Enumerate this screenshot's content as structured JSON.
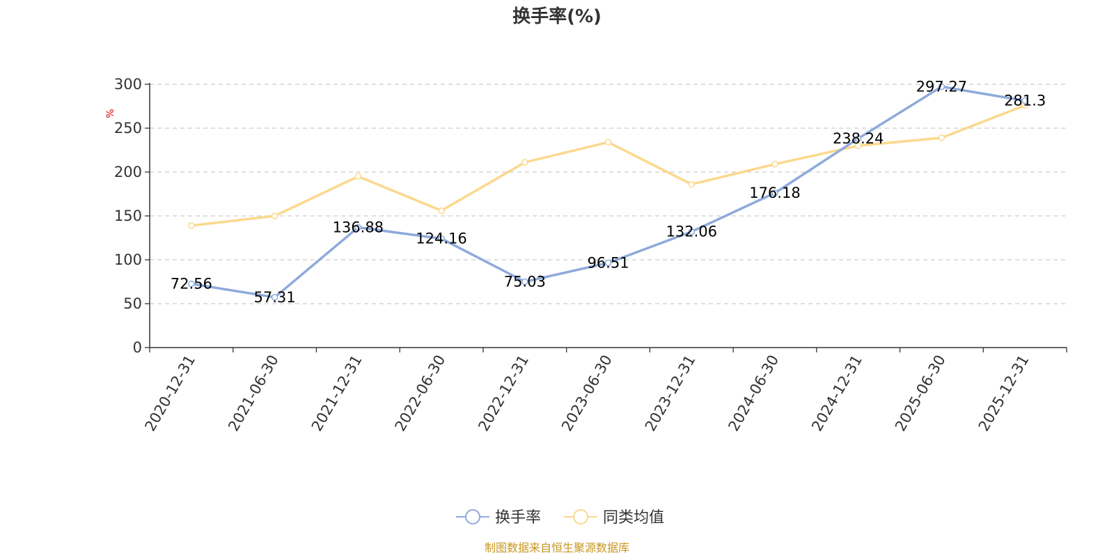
{
  "colors": {
    "series_turnover": "#8eaadb",
    "series_peer": "#fcd88d",
    "axis": "#333333",
    "grid": "#cccccc",
    "unit": "#e00000",
    "source": "#c8961e"
  },
  "chart_data": {
    "type": "line",
    "title": "换手率(%)",
    "ylabel": "%",
    "xlabel": "",
    "ylim": [
      0,
      300
    ],
    "yticks": [
      0,
      50,
      100,
      150,
      200,
      250,
      300
    ],
    "grid": "horizontal-dashed",
    "legend_position": "bottom-center",
    "x": [
      "2020-12-31",
      "2021-06-30",
      "2021-12-31",
      "2022-06-30",
      "2022-12-31",
      "2023-06-30",
      "2023-12-31",
      "2024-06-30",
      "2024-12-31",
      "2025-06-30",
      "2025-12-31"
    ],
    "series": [
      {
        "name": "换手率",
        "color_key": "series_turnover",
        "show_labels": true,
        "values": [
          72.56,
          57.31,
          136.88,
          124.16,
          75.03,
          96.51,
          132.06,
          176.18,
          238.24,
          297.27,
          281.3
        ]
      },
      {
        "name": "同类均值",
        "color_key": "series_peer",
        "show_labels": false,
        "values": [
          139,
          150,
          195,
          156,
          211,
          234,
          186,
          209,
          230,
          239,
          276
        ]
      }
    ]
  },
  "footer": {
    "source": "制图数据来自恒生聚源数据库"
  }
}
